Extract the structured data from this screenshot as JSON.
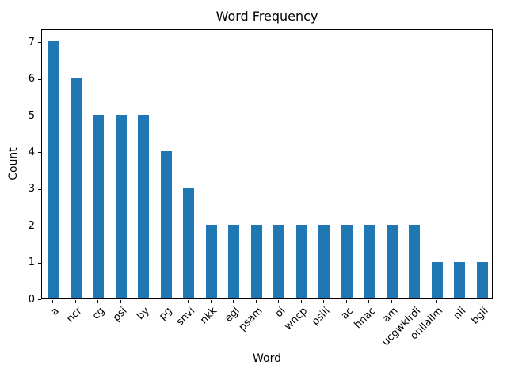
{
  "figure": {
    "background_color": "#ffffff",
    "spine_color": "#000000",
    "text_color": "#000000"
  },
  "chart_data": {
    "type": "bar",
    "title": "Word Frequency",
    "xlabel": "Word",
    "ylabel": "Count",
    "categories": [
      "a",
      "ncr",
      "cg",
      "psi",
      "by",
      "pg",
      "snvi",
      "nkk",
      "egl",
      "psam",
      "oi",
      "wncp",
      "psili",
      "ac",
      "hnac",
      "am",
      "ucgwkirdi",
      "onllailm",
      "nli",
      "bgli"
    ],
    "values": [
      7,
      6,
      5,
      5,
      5,
      4,
      3,
      2,
      2,
      2,
      2,
      2,
      2,
      2,
      2,
      2,
      2,
      1,
      1,
      1
    ],
    "yticks": [
      0,
      1,
      2,
      3,
      4,
      5,
      6,
      7
    ],
    "ylim": [
      0,
      7.35
    ],
    "bar_color": "#1f77b4",
    "bar_width_fraction": 0.5,
    "xtick_label_rotation": 45,
    "grid": false,
    "legend": null
  }
}
